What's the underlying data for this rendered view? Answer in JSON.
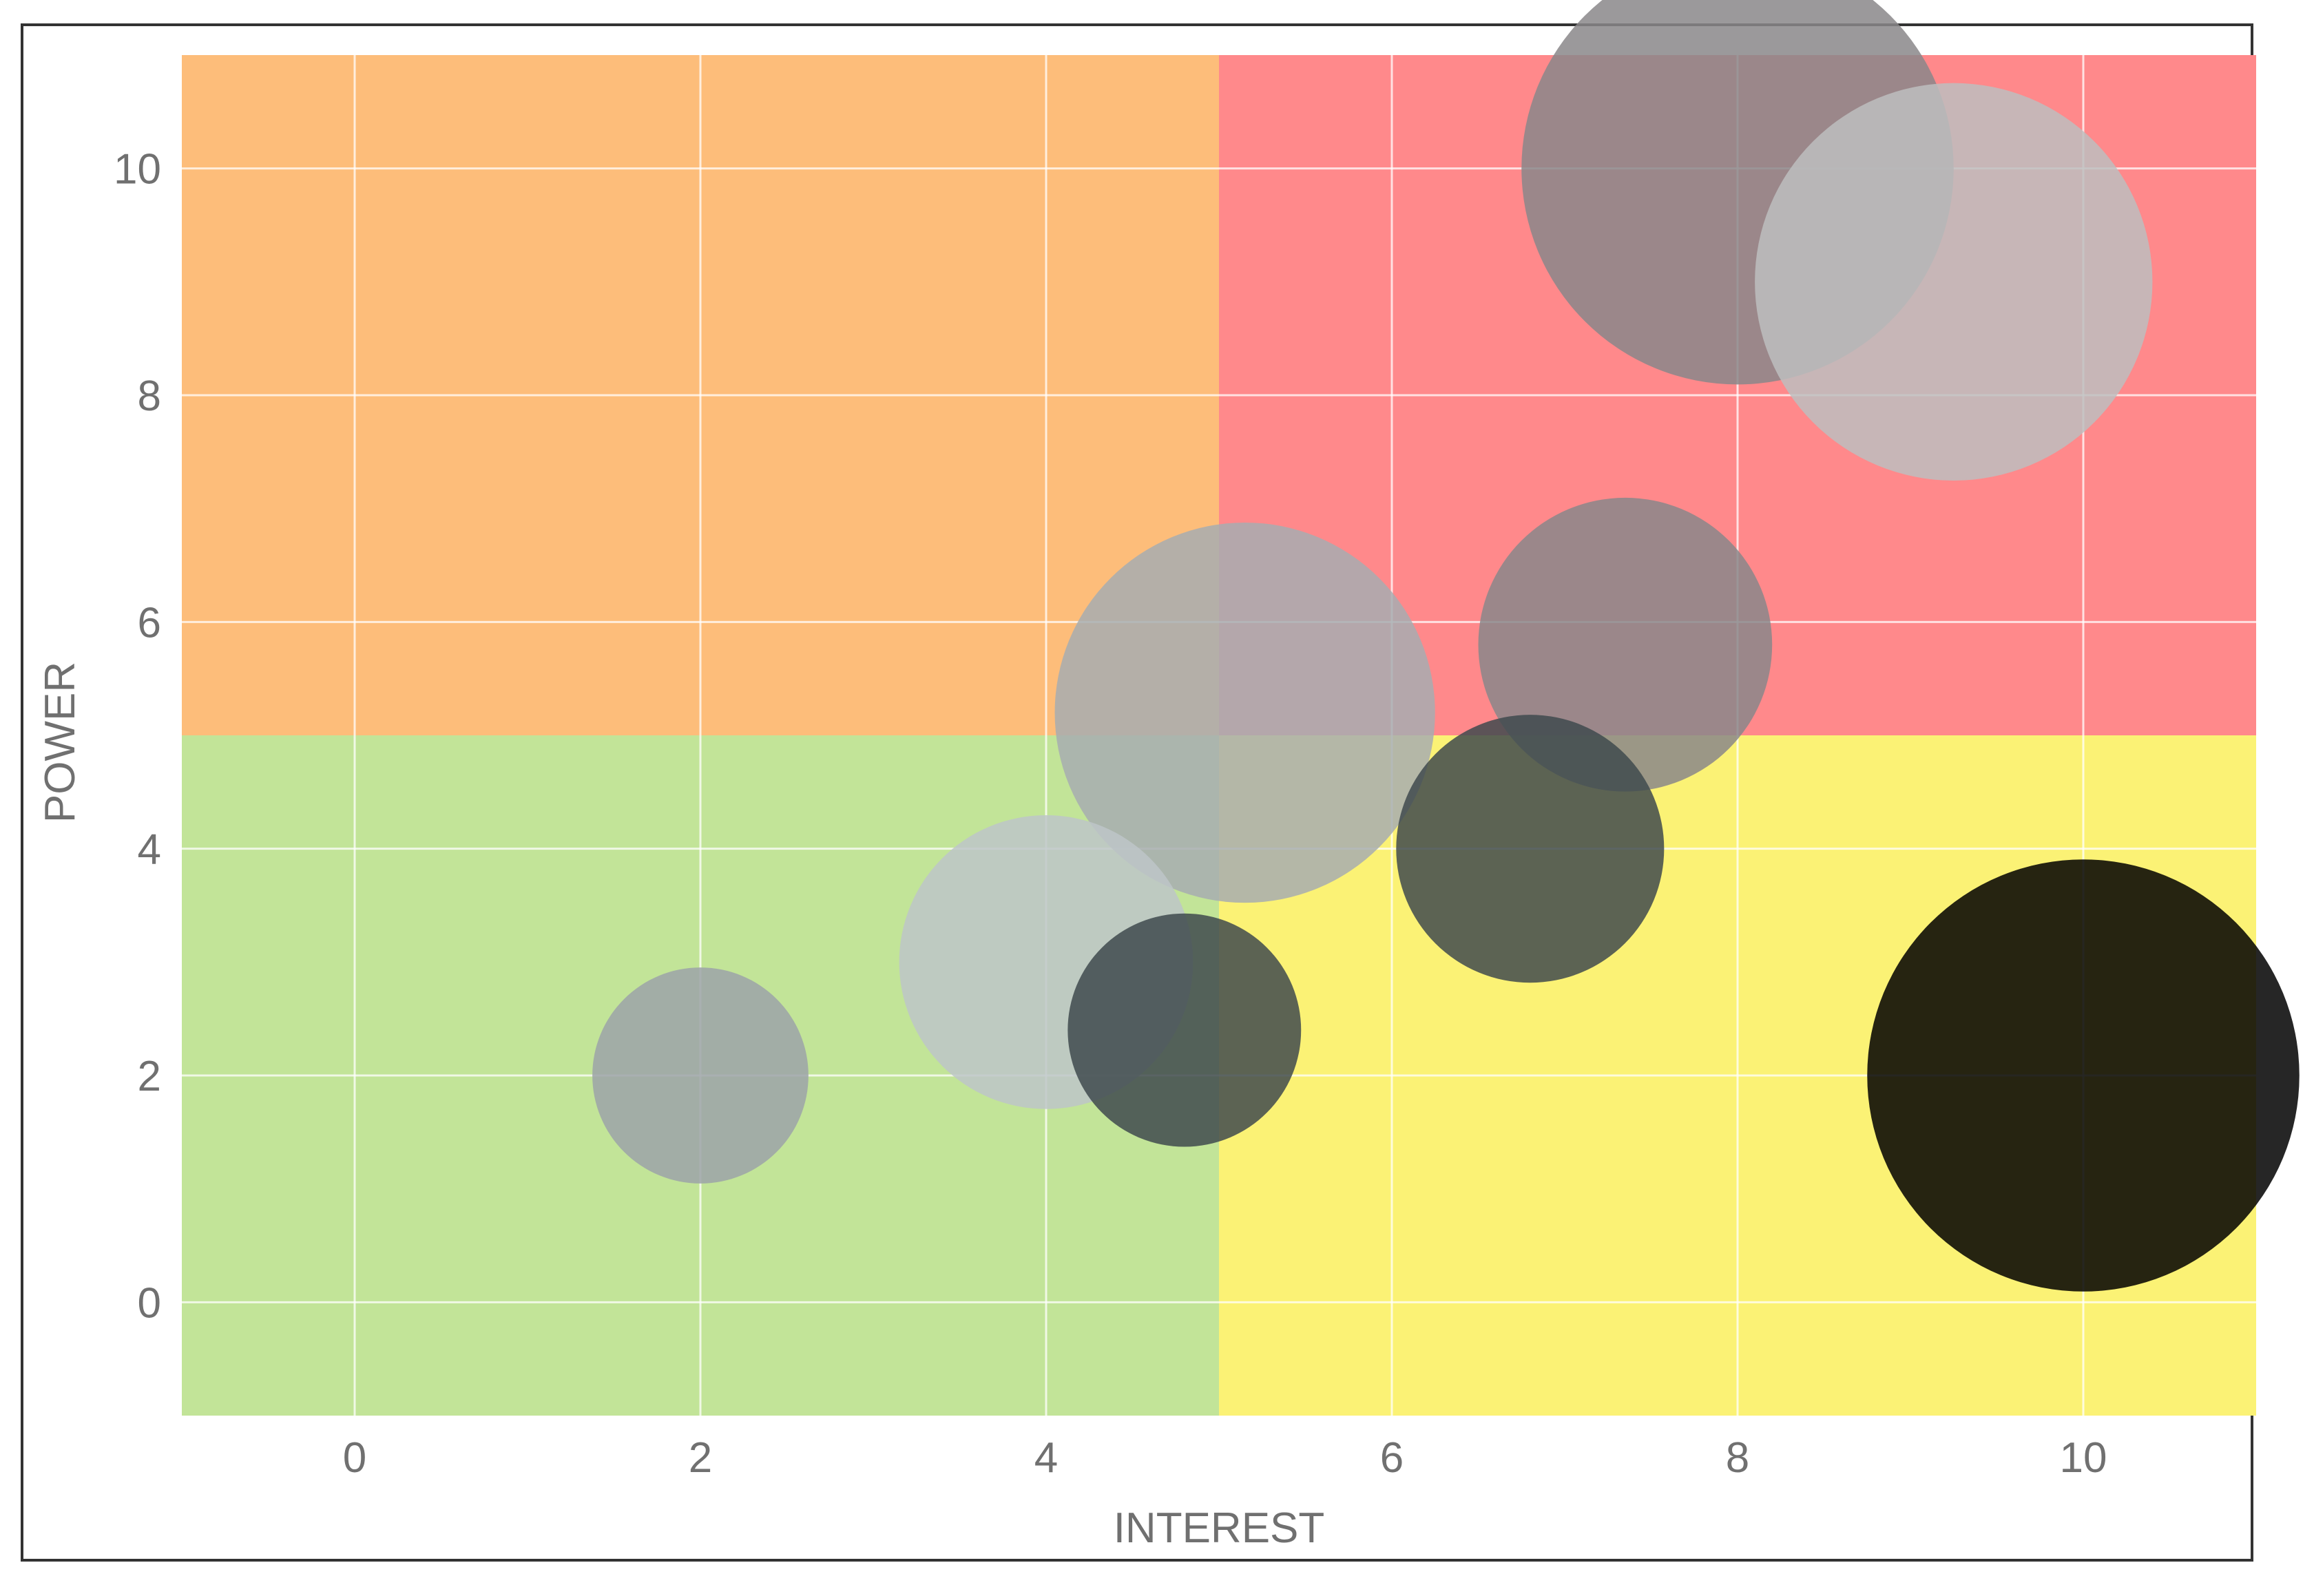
{
  "chart_data": {
    "type": "scatter",
    "subtype": "bubble",
    "xlabel": "INTEREST",
    "ylabel": "POWER",
    "xlim": [
      -1,
      11
    ],
    "ylim": [
      -1,
      11
    ],
    "x_ticks": [
      0,
      2,
      4,
      6,
      8,
      10
    ],
    "y_ticks": [
      0,
      2,
      4,
      6,
      8,
      10
    ],
    "grid": true,
    "quadrants": [
      {
        "x_range": [
          -1,
          5
        ],
        "y_range": [
          5,
          11
        ],
        "color": "#fdbd7a"
      },
      {
        "x_range": [
          5,
          11
        ],
        "y_range": [
          5,
          11
        ],
        "color": "#ff898b"
      },
      {
        "x_range": [
          -1,
          5
        ],
        "y_range": [
          -1,
          5
        ],
        "color": "#c2e498"
      },
      {
        "x_range": [
          5,
          11
        ],
        "y_range": [
          -1,
          5
        ],
        "color": "#fbf275"
      }
    ],
    "points": [
      {
        "x": 8.0,
        "y": 10.0,
        "size": 2.5,
        "color": "#8a878a"
      },
      {
        "x": 9.25,
        "y": 9.0,
        "size": 2.3,
        "color": "#bdbebe"
      },
      {
        "x": 7.35,
        "y": 5.8,
        "size": 1.7,
        "color": "#8a878a"
      },
      {
        "x": 5.15,
        "y": 5.2,
        "size": 2.2,
        "color": "#a7adb0"
      },
      {
        "x": 6.8,
        "y": 4.0,
        "size": 1.55,
        "color": "#3f4a4e"
      },
      {
        "x": 4.0,
        "y": 3.0,
        "size": 1.7,
        "color": "#bdc6c8"
      },
      {
        "x": 4.8,
        "y": 2.4,
        "size": 1.35,
        "color": "#3f4a4e"
      },
      {
        "x": 2.0,
        "y": 2.0,
        "size": 1.25,
        "color": "#9ca3a8"
      },
      {
        "x": 10.0,
        "y": 2.0,
        "size": 2.5,
        "color": "#000000"
      }
    ]
  }
}
